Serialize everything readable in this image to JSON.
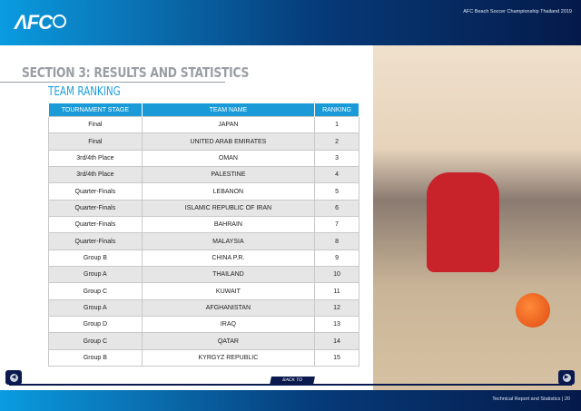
{
  "header": {
    "logo": "AFC",
    "title": "AFC Beach Soccer Championship Thailand 2019"
  },
  "section_title": "SECTION 3: RESULTS AND STATISTICS",
  "subtitle": "TEAM RANKING",
  "table": {
    "columns": [
      "TOURNAMENT STAGE",
      "TEAM NAME",
      "RANKING"
    ],
    "rows": [
      [
        "Final",
        "JAPAN",
        "1"
      ],
      [
        "Final",
        "UNITED ARAB EMIRATES",
        "2"
      ],
      [
        "3rd/4th Place",
        "OMAN",
        "3"
      ],
      [
        "3rd/4th Place",
        "PALESTINE",
        "4"
      ],
      [
        "Quarter-Finals",
        "LEBANON",
        "5"
      ],
      [
        "Quarter-Finals",
        "ISLAMIC REPUBLIC OF IRAN",
        "6"
      ],
      [
        "Quarter-Finals",
        "BAHRAIN",
        "7"
      ],
      [
        "Quarter-Finals",
        "MALAYSIA",
        "8"
      ],
      [
        "Group B",
        "CHINA P.R.",
        "9"
      ],
      [
        "Group A",
        "THAILAND",
        "10"
      ],
      [
        "Group C",
        "KUWAIT",
        "11"
      ],
      [
        "Group A",
        "AFGHANISTAN",
        "12"
      ],
      [
        "Group D",
        "IRAQ",
        "13"
      ],
      [
        "Group C",
        "QATAR",
        "14"
      ],
      [
        "Group B",
        "KYRGYZ REPUBLIC",
        "15"
      ]
    ]
  },
  "nav": {
    "back_label": "BACK TO CONTENTS",
    "prev_icon": "chevron-left-icon",
    "next_icon": "chevron-right-icon"
  },
  "footer": {
    "text": "Technical Report and Statistics  |  20"
  }
}
